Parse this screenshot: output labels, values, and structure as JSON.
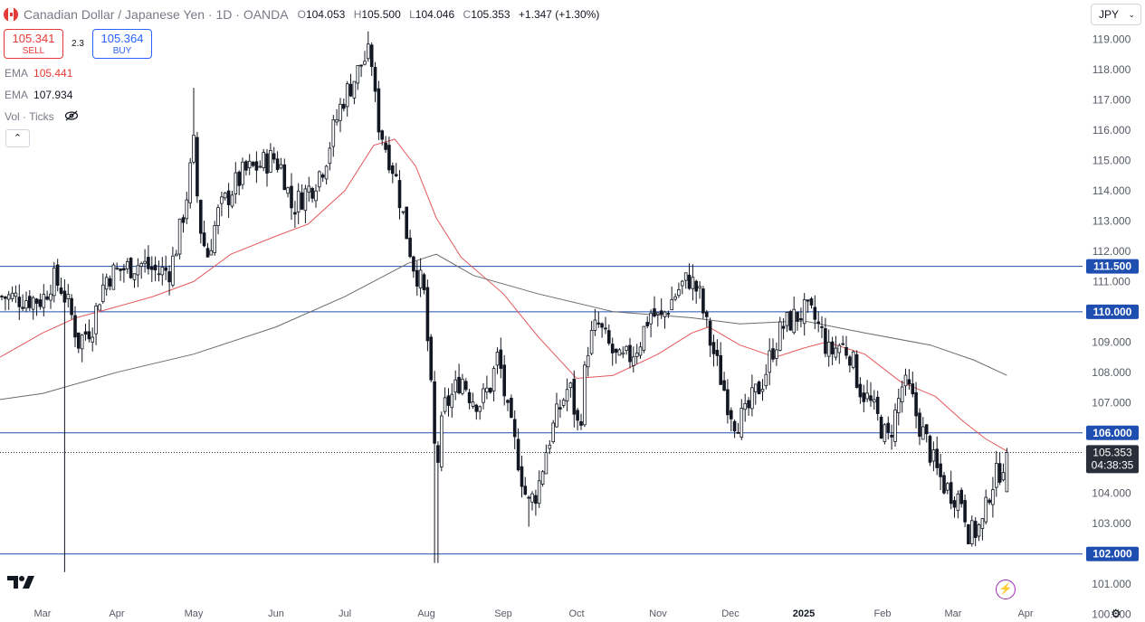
{
  "header": {
    "symbol": "Canadian Dollar / Japanese Yen · 1D · OANDA",
    "open_label": "O",
    "open": "104.053",
    "high_label": "H",
    "high": "105.500",
    "low_label": "L",
    "low": "104.046",
    "close_label": "C",
    "close": "105.353",
    "change": "+1.347 (+1.30%)"
  },
  "trade": {
    "sell_price": "105.341",
    "sell_label": "SELL",
    "spread": "2.3",
    "buy_price": "105.364",
    "buy_label": "BUY"
  },
  "indicators": {
    "ema1_label": "EMA",
    "ema1_value": "105.441",
    "ema2_label": "EMA",
    "ema2_value": "107.934",
    "vol_label": "Vol · Ticks"
  },
  "currency_select": {
    "value": "JPY"
  },
  "colors": {
    "ema_fast": "#e5585c",
    "ema_slow": "#6b6b6b",
    "hline": "#1e4fb0",
    "candle": "#131722",
    "axis_text": "#555a64",
    "price_label_bg": "#2a2e39",
    "level_label_bg": "#1e4fb0"
  },
  "icons": [
    "eye-off-icon",
    "chevron-up-icon",
    "chevron-down-icon",
    "tradingview-logo-icon",
    "lightning-icon",
    "gear-icon",
    "canada-flag-icon"
  ],
  "chart_data": {
    "type": "candlestick",
    "title": "Canadian Dollar / Japanese Yen · 1D · OANDA",
    "x_ticks": [
      "Mar",
      "Apr",
      "May",
      "Jun",
      "Jul",
      "Aug",
      "Sep",
      "Oct",
      "Nov",
      "Dec",
      "2025",
      "Feb",
      "Mar",
      "Apr"
    ],
    "y_ticks": [
      "119.000",
      "118.000",
      "117.000",
      "116.000",
      "115.000",
      "114.000",
      "113.000",
      "112.000",
      "111.000",
      "110.000",
      "109.000",
      "108.000",
      "107.000",
      "106.000",
      "105.000",
      "104.000",
      "103.000",
      "102.000",
      "101.000",
      "100.000"
    ],
    "ylim": [
      99.9,
      120.3
    ],
    "grid": false,
    "horizontal_levels": [
      {
        "value": 111.5,
        "label": "111.500"
      },
      {
        "value": 110.0,
        "label": "110.000"
      },
      {
        "value": 106.0,
        "label": "106.000"
      },
      {
        "value": 102.0,
        "label": "102.000"
      }
    ],
    "last_price": {
      "value": 105.353,
      "label": "105.353",
      "countdown": "04:38:35"
    },
    "close_path": [
      [
        "Mar 01",
        110.4
      ],
      [
        "Mar 05",
        111.1
      ],
      [
        "Mar 09",
        110.8
      ],
      [
        "Mar 13",
        109.9
      ],
      [
        "Mar 16",
        109.0
      ],
      [
        "Mar 19",
        109.3
      ],
      [
        "Mar 22",
        109.6
      ],
      [
        "Mar 25",
        110.6
      ],
      [
        "Mar 28",
        111.2
      ],
      [
        "Apr 03",
        111.4
      ],
      [
        "Apr 10",
        111.6
      ],
      [
        "Apr 17",
        111.3
      ],
      [
        "Apr 22",
        111.4
      ],
      [
        "Apr 26",
        112.8
      ],
      [
        "Apr 29",
        114.2
      ],
      [
        "May 01",
        115.5
      ],
      [
        "May 03",
        113.0
      ],
      [
        "May 06",
        111.8
      ],
      [
        "May 10",
        113.2
      ],
      [
        "May 15",
        114.0
      ],
      [
        "May 20",
        114.6
      ],
      [
        "May 25",
        114.8
      ],
      [
        "May 31",
        115.1
      ],
      [
        "Jun 04",
        114.7
      ],
      [
        "Jun 08",
        113.4
      ],
      [
        "Jun 12",
        113.8
      ],
      [
        "Jun 17",
        114.2
      ],
      [
        "Jun 22",
        114.9
      ],
      [
        "Jun 26",
        116.0
      ],
      [
        "Jun 30",
        117.0
      ],
      [
        "Jul 04",
        117.6
      ],
      [
        "Jul 08",
        118.3
      ],
      [
        "Jul 11",
        118.5
      ],
      [
        "Jul 13",
        116.5
      ],
      [
        "Jul 16",
        115.6
      ],
      [
        "Jul 20",
        114.6
      ],
      [
        "Jul 24",
        112.8
      ],
      [
        "Jul 27",
        111.6
      ],
      [
        "Jul 31",
        110.7
      ],
      [
        "Aug 02",
        108.5
      ],
      [
        "Aug 05",
        104.6
      ],
      [
        "Aug 08",
        106.8
      ],
      [
        "Aug 12",
        107.3
      ],
      [
        "Aug 15",
        107.9
      ],
      [
        "Aug 19",
        107.2
      ],
      [
        "Aug 23",
        107.0
      ],
      [
        "Aug 27",
        107.6
      ],
      [
        "Aug 30",
        108.6
      ],
      [
        "Sep 03",
        106.5
      ],
      [
        "Sep 07",
        105.2
      ],
      [
        "Sep 11",
        103.6
      ],
      [
        "Sep 15",
        104.1
      ],
      [
        "Sep 19",
        105.6
      ],
      [
        "Sep 24",
        106.8
      ],
      [
        "Sep 28",
        107.6
      ],
      [
        "Oct 02",
        106.0
      ],
      [
        "Oct 05",
        108.8
      ],
      [
        "Oct 09",
        109.6
      ],
      [
        "Oct 13",
        108.9
      ],
      [
        "Oct 17",
        108.3
      ],
      [
        "Oct 21",
        108.5
      ],
      [
        "Oct 25",
        109.0
      ],
      [
        "Oct 29",
        110.0
      ],
      [
        "Nov 02",
        109.7
      ],
      [
        "Nov 06",
        110.3
      ],
      [
        "Nov 10",
        110.8
      ],
      [
        "Nov 14",
        111.1
      ],
      [
        "Nov 18",
        110.6
      ],
      [
        "Nov 22",
        109.2
      ],
      [
        "Nov 26",
        108.1
      ],
      [
        "Nov 30",
        107.0
      ],
      [
        "Dec 03",
        106.4
      ],
      [
        "Dec 07",
        106.5
      ],
      [
        "Dec 11",
        107.2
      ],
      [
        "Dec 15",
        107.8
      ],
      [
        "Dec 19",
        108.8
      ],
      [
        "Dec 23",
        109.5
      ],
      [
        "Dec 28",
        109.8
      ],
      [
        "Jan 01",
        110.0
      ],
      [
        "Jan 05",
        109.8
      ],
      [
        "Jan 08",
        109.3
      ],
      [
        "Jan 11",
        108.6
      ],
      [
        "Jan 15",
        108.9
      ],
      [
        "Jan 19",
        108.7
      ],
      [
        "Jan 23",
        107.5
      ],
      [
        "Jan 27",
        107.0
      ],
      [
        "Jan 31",
        106.3
      ],
      [
        "Feb 03",
        105.7
      ],
      [
        "Feb 06",
        106.6
      ],
      [
        "Feb 09",
        107.6
      ],
      [
        "Feb 12",
        107.3
      ],
      [
        "Feb 15",
        106.4
      ],
      [
        "Feb 19",
        105.6
      ],
      [
        "Feb 22",
        104.8
      ],
      [
        "Feb 26",
        104.2
      ],
      [
        "Mar 01",
        104.0
      ],
      [
        "Mar 05",
        103.8
      ],
      [
        "Mar 08",
        102.6
      ],
      [
        "Mar 11",
        102.8
      ],
      [
        "Mar 14",
        103.0
      ],
      [
        "Mar 17",
        104.3
      ],
      [
        "Mar 20",
        104.6
      ],
      [
        "Mar 24",
        105.35
      ]
    ],
    "ema_fast_path": [
      [
        "Mar 01",
        109.3
      ],
      [
        "Mar 15",
        109.8
      ],
      [
        "Mar 29",
        110.1
      ],
      [
        "Apr 15",
        110.5
      ],
      [
        "May 01",
        111.0
      ],
      [
        "May 15",
        111.9
      ],
      [
        "Jun 01",
        112.5
      ],
      [
        "Jun 15",
        112.9
      ],
      [
        "Jul 01",
        114.0
      ],
      [
        "Jul 12",
        115.5
      ],
      [
        "Jul 20",
        115.7
      ],
      [
        "Jul 28",
        114.8
      ],
      [
        "Aug 05",
        113.1
      ],
      [
        "Aug 15",
        111.8
      ],
      [
        "Sep 01",
        110.6
      ],
      [
        "Sep 15",
        109.2
      ],
      [
        "Oct 01",
        107.8
      ],
      [
        "Oct 15",
        107.9
      ],
      [
        "Nov 01",
        108.6
      ],
      [
        "Nov 15",
        109.3
      ],
      [
        "Nov 22",
        109.5
      ],
      [
        "Dec 05",
        108.9
      ],
      [
        "Dec 20",
        108.5
      ],
      [
        "Jan 01",
        108.8
      ],
      [
        "Jan 10",
        109.0
      ],
      [
        "Jan 25",
        108.6
      ],
      [
        "Feb 08",
        107.7
      ],
      [
        "Feb 22",
        107.2
      ],
      [
        "Mar 05",
        106.4
      ],
      [
        "Mar 15",
        105.8
      ],
      [
        "Mar 24",
        105.4
      ]
    ],
    "ema_slow_path": [
      [
        "Mar 01",
        107.3
      ],
      [
        "Apr 01",
        108.0
      ],
      [
        "May 01",
        108.6
      ],
      [
        "Jun 01",
        109.5
      ],
      [
        "Jul 01",
        110.5
      ],
      [
        "Jul 25",
        111.6
      ],
      [
        "Aug 05",
        111.9
      ],
      [
        "Aug 20",
        111.2
      ],
      [
        "Sep 15",
        110.6
      ],
      [
        "Oct 15",
        110.0
      ],
      [
        "Nov 15",
        109.8
      ],
      [
        "Dec 05",
        109.6
      ],
      [
        "Jan 01",
        109.7
      ],
      [
        "Jan 25",
        109.3
      ],
      [
        "Feb 20",
        108.9
      ],
      [
        "Mar 10",
        108.4
      ],
      [
        "Mar 24",
        107.9
      ]
    ],
    "notable_wicks": [
      {
        "date": "May 01",
        "high": 117.4
      },
      {
        "date": "Jul 11",
        "high": 118.9
      },
      {
        "date": "Aug 05",
        "low": 101.7
      },
      {
        "date": "Sep 11",
        "low": 102.9
      },
      {
        "date": "Nov 14",
        "high": 111.6
      },
      {
        "date": "Mar 11",
        "low": 101.4
      }
    ]
  }
}
